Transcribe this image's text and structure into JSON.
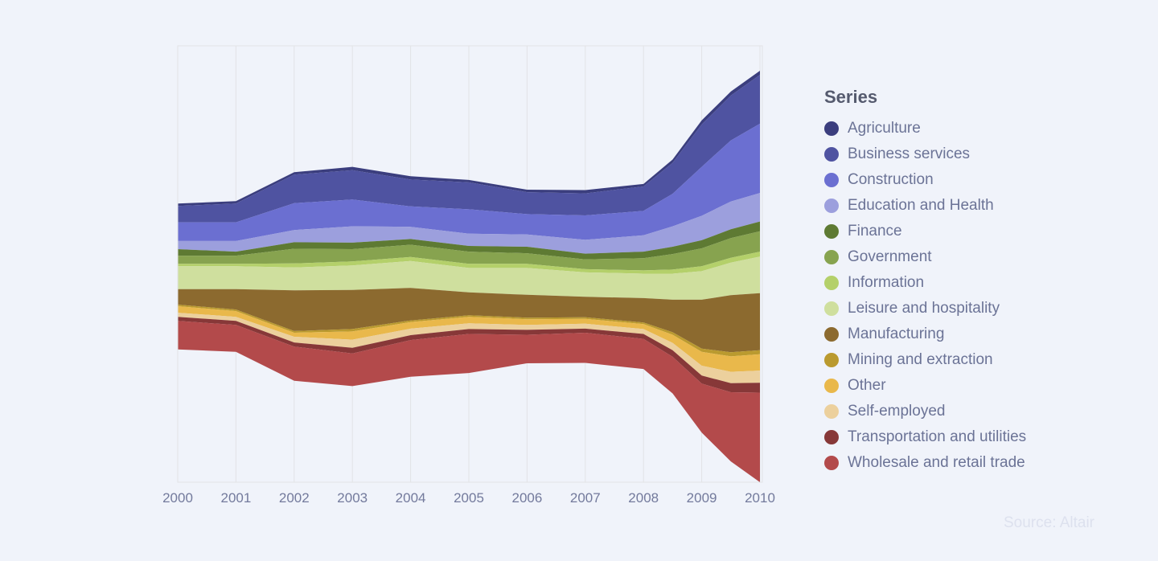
{
  "chart_data": {
    "type": "area",
    "stack": "center",
    "x": [
      2000,
      2001,
      2002,
      2003,
      2004,
      2005,
      2006,
      2007,
      2008,
      2008.5,
      2009,
      2009.5,
      2010
    ],
    "x_ticks": [
      "2000",
      "2001",
      "2002",
      "2003",
      "2004",
      "2005",
      "2006",
      "2007",
      "2008",
      "2009",
      "2010"
    ],
    "xlim": [
      2000,
      2010
    ],
    "grid": true,
    "legend_title": "Series",
    "legend_position": "right",
    "series": [
      {
        "name": "Agriculture",
        "color": "#3b3e7e",
        "values": [
          90,
          90,
          90,
          120,
          120,
          90,
          90,
          120,
          90,
          120,
          150,
          150,
          150
        ]
      },
      {
        "name": "Business services",
        "color": "#4f53a1",
        "values": [
          600,
          690,
          1050,
          1080,
          990,
          990,
          810,
          810,
          900,
          1140,
          1560,
          1650,
          1800
        ]
      },
      {
        "name": "Construction",
        "color": "#6b6fd1",
        "values": [
          690,
          690,
          990,
          990,
          750,
          900,
          750,
          900,
          900,
          1200,
          1800,
          2250,
          2550
        ]
      },
      {
        "name": "Education and Health",
        "color": "#9c9fdd",
        "values": [
          300,
          390,
          450,
          600,
          450,
          450,
          450,
          510,
          600,
          750,
          900,
          1020,
          1050
        ]
      },
      {
        "name": "Finance",
        "color": "#5e7a33",
        "values": [
          240,
          150,
          240,
          240,
          210,
          210,
          240,
          210,
          240,
          270,
          300,
          330,
          360
        ]
      },
      {
        "name": "Government",
        "color": "#87a34f",
        "values": [
          300,
          300,
          540,
          450,
          450,
          450,
          390,
          360,
          450,
          570,
          660,
          720,
          750
        ]
      },
      {
        "name": "Information",
        "color": "#b4d06a",
        "values": [
          90,
          90,
          150,
          150,
          150,
          150,
          150,
          120,
          120,
          150,
          180,
          180,
          180
        ]
      },
      {
        "name": "Leisure and hospitality",
        "color": "#cfdf9e",
        "values": [
          840,
          840,
          840,
          900,
          990,
          900,
          990,
          900,
          900,
          960,
          1050,
          1200,
          1350
        ]
      },
      {
        "name": "Manufacturing",
        "color": "#8c6a2f",
        "values": [
          570,
          750,
          1500,
          1440,
          1200,
          840,
          840,
          750,
          900,
          1200,
          1800,
          2100,
          2100
        ]
      },
      {
        "name": "Mining and extraction",
        "color": "#ba9a2f",
        "values": [
          60,
          60,
          60,
          90,
          60,
          60,
          60,
          60,
          60,
          90,
          120,
          150,
          150
        ]
      },
      {
        "name": "Other",
        "color": "#e9b84b",
        "values": [
          240,
          210,
          150,
          300,
          240,
          240,
          210,
          180,
          180,
          300,
          510,
          570,
          600
        ]
      },
      {
        "name": "Self-employed",
        "color": "#ecd09d",
        "values": [
          150,
          150,
          210,
          300,
          240,
          210,
          180,
          180,
          180,
          270,
          360,
          420,
          450
        ]
      },
      {
        "name": "Transportation and utilities",
        "color": "#873838",
        "values": [
          150,
          150,
          150,
          210,
          180,
          180,
          180,
          150,
          180,
          240,
          300,
          330,
          360
        ]
      },
      {
        "name": "Wholesale and retail trade",
        "color": "#b34a4b",
        "values": [
          1050,
          990,
          1260,
          1200,
          1350,
          1440,
          1050,
          1110,
          1110,
          1350,
          1800,
          2550,
          3300
        ]
      }
    ]
  },
  "source": "Source: Altair"
}
